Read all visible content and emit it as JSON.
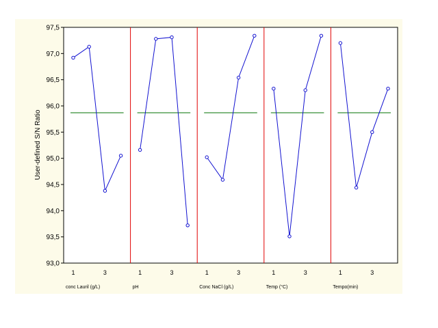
{
  "chart_data": {
    "type": "line",
    "title": "",
    "xlabel": "",
    "ylabel": "User-defined S/N Ratio",
    "ylim": [
      93.0,
      97.5
    ],
    "yticks": [
      "97,5",
      "97,0",
      "96,5",
      "96,0",
      "95,5",
      "95,0",
      "94,5",
      "94,0",
      "93,5",
      "93,0"
    ],
    "ytick_values": [
      97.5,
      97.0,
      96.5,
      96.0,
      95.5,
      95.0,
      94.5,
      94.0,
      93.5,
      93.0
    ],
    "grand_mean": 95.87,
    "levels": [
      1,
      2,
      3,
      4
    ],
    "level_tick_labels": [
      "1",
      "",
      "3",
      ""
    ],
    "factors": [
      {
        "label": "conc Lauril (g/L)",
        "values": [
          96.92,
          97.13,
          94.38,
          95.05
        ]
      },
      {
        "label": "pH",
        "values": [
          95.16,
          97.28,
          97.31,
          93.72
        ]
      },
      {
        "label": "Conc NaCl (g/L)",
        "values": [
          95.02,
          94.59,
          96.54,
          97.34
        ]
      },
      {
        "label": "Temp (°C)",
        "values": [
          96.33,
          93.51,
          96.3,
          97.34
        ]
      },
      {
        "label": "Tempo(min)",
        "values": [
          97.2,
          94.44,
          95.5,
          96.33
        ]
      }
    ],
    "grid": true,
    "colors": {
      "series": "#1010d0",
      "mean": "#007000",
      "separator": "#e00000",
      "panel": "#fdfbe9"
    }
  }
}
